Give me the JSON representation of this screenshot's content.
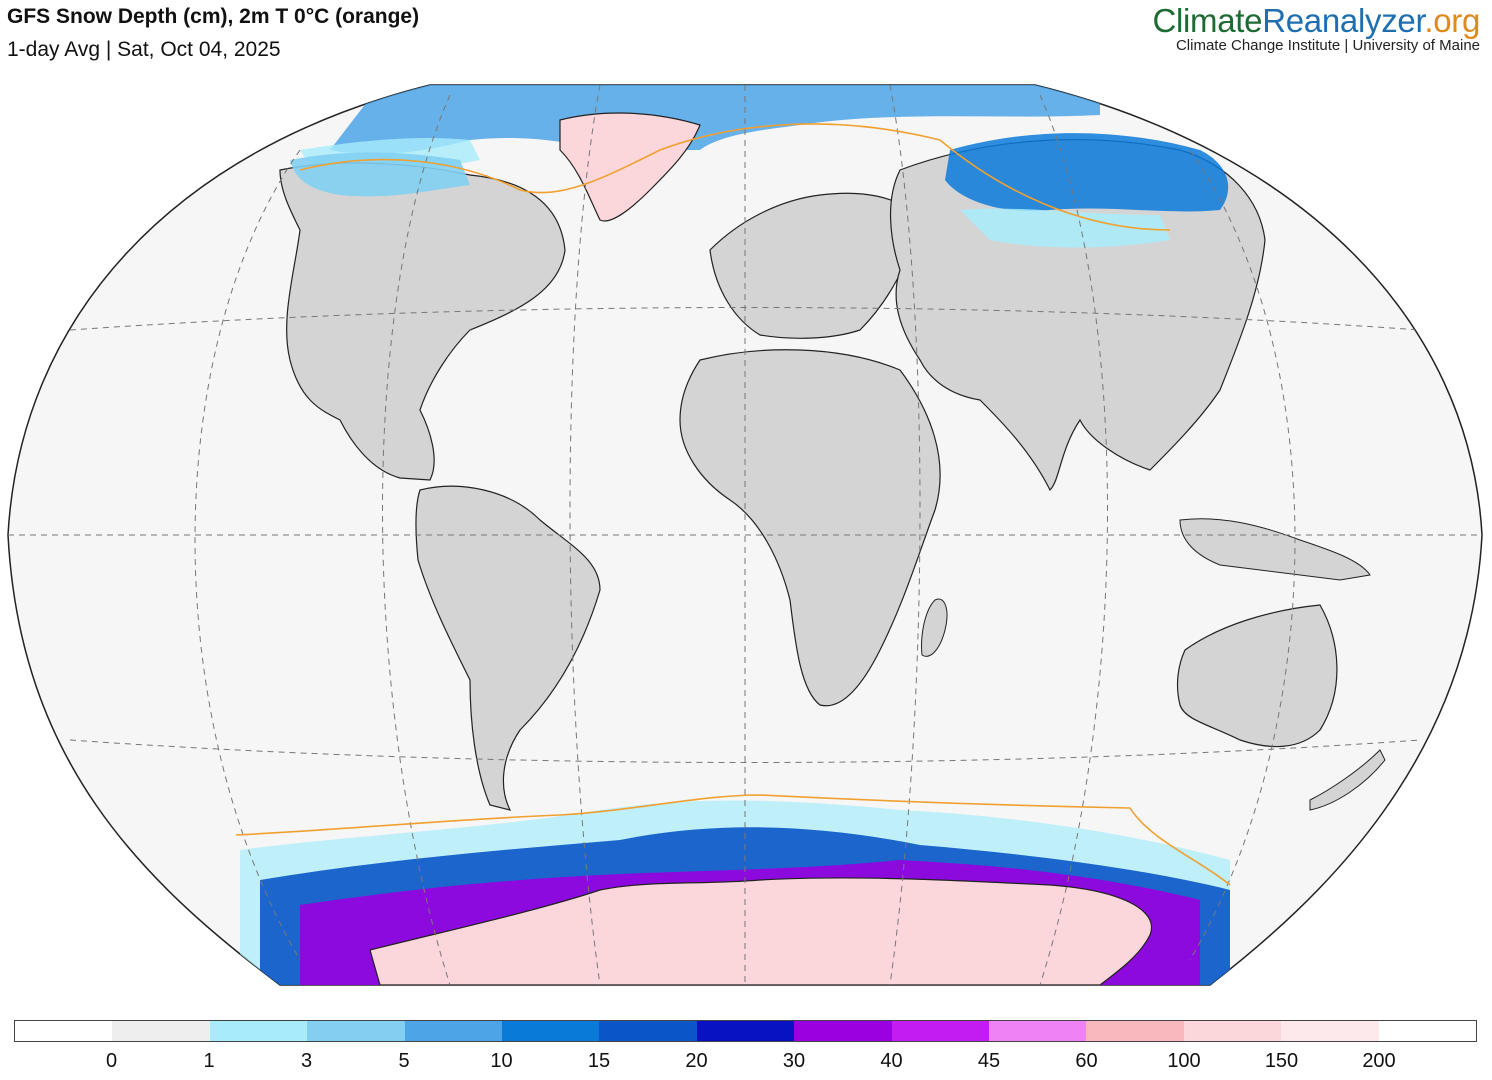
{
  "header": {
    "title": "GFS Snow Depth (cm), 2m T 0°C (orange)",
    "subtitle": "1-day Avg | Sat, Oct 04, 2025"
  },
  "brand": {
    "name_part1": "Climate",
    "name_part2": "Reanalyzer",
    "name_part3": ".org",
    "tagline": "Climate Change Institute | University of Maine"
  },
  "map": {
    "projection": "Robinson-like world projection",
    "ocean_color": "#f6f6f6",
    "land_color": "#d4d4d4",
    "freezing_line_color": "#f0a030",
    "graticule": "dashed"
  },
  "legend": {
    "colors": [
      "#ffffff",
      "#eeeeee",
      "#a8ecfb",
      "#82cff2",
      "#4da5e8",
      "#0a7ad9",
      "#0a55c8",
      "#0812c2",
      "#9a00e0",
      "#c21cf2",
      "#ef82f5",
      "#f7b8be",
      "#fbd6da",
      "#fde9ec",
      "#ffffff"
    ],
    "tick_labels": [
      "0",
      "1",
      "3",
      "5",
      "10",
      "15",
      "20",
      "30",
      "40",
      "45",
      "60",
      "100",
      "150",
      "200"
    ]
  }
}
